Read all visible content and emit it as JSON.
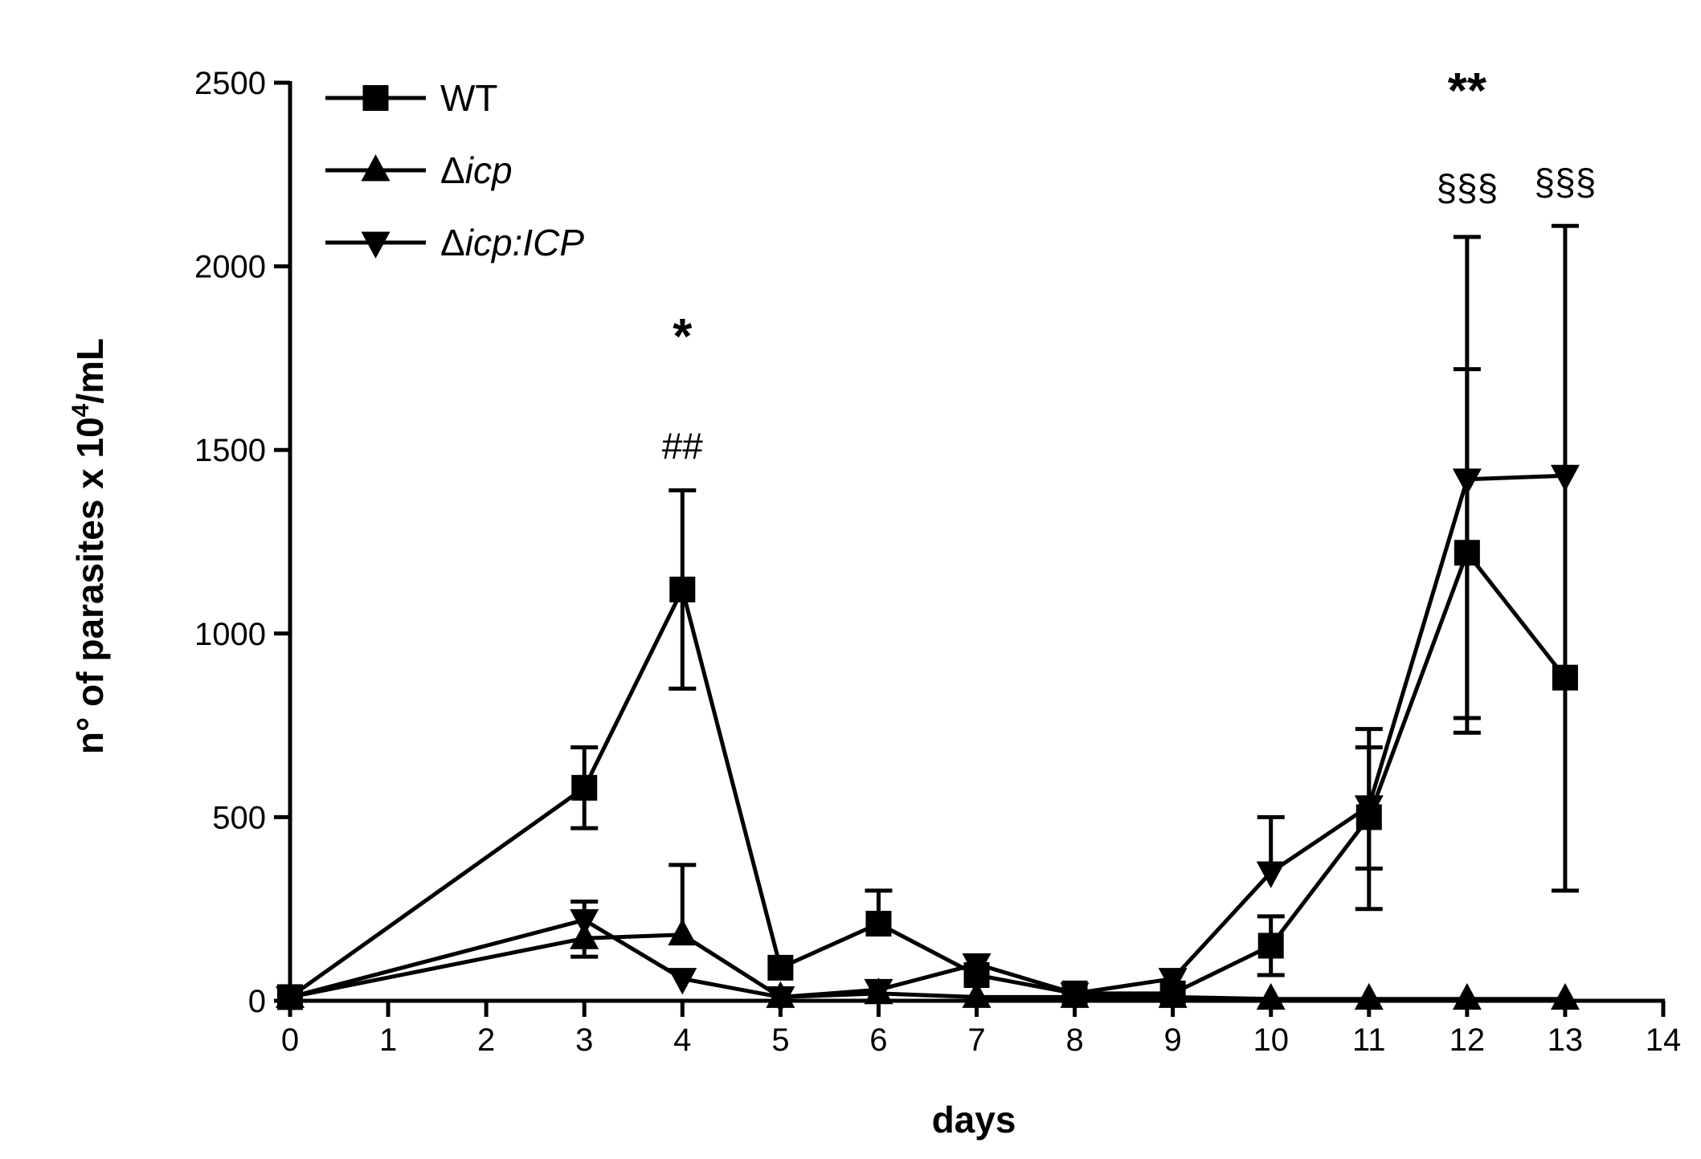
{
  "chart_data": {
    "type": "line",
    "title": "",
    "xlabel": "days",
    "ylabel_main": "n° of parasites x 10",
    "ylabel_sup": "4",
    "ylabel_tail": "/mL",
    "xlim": [
      0,
      14
    ],
    "ylim": [
      0,
      2500
    ],
    "x_ticks": [
      0,
      1,
      2,
      3,
      4,
      5,
      6,
      7,
      8,
      9,
      10,
      11,
      12,
      13,
      14
    ],
    "x_tick_labels": [
      "0",
      "1",
      "2",
      "3",
      "4",
      "5",
      "6",
      "7",
      "8",
      "9",
      "10",
      "11",
      "12",
      "13",
      "14"
    ],
    "y_ticks": [
      0,
      500,
      1000,
      1500,
      2000,
      2500
    ],
    "y_tick_labels": [
      "0",
      "500",
      "1000",
      "1500",
      "2000",
      "2500"
    ],
    "legend_position": "top-left",
    "grid": false,
    "series": [
      {
        "name": "WT",
        "name_prefix": "",
        "name_italic": "WT",
        "italic": false,
        "marker": "square",
        "x": [
          0,
          3,
          4,
          5,
          6,
          7,
          8,
          9,
          10,
          11,
          12,
          13
        ],
        "values": [
          10,
          580,
          1120,
          90,
          210,
          70,
          20,
          20,
          150,
          500,
          1220,
          880
        ],
        "err_upper": [
          0,
          690,
          1390,
          0,
          300,
          0,
          0,
          0,
          230,
          690,
          1720,
          0
        ],
        "err_lower": [
          0,
          470,
          850,
          0,
          0,
          0,
          0,
          0,
          70,
          250,
          730,
          0
        ]
      },
      {
        "name": "Δicp",
        "name_prefix": "Δ",
        "name_italic": "icp",
        "italic": true,
        "marker": "triangle-up",
        "x": [
          0,
          3,
          4,
          5,
          6,
          7,
          8,
          9,
          10,
          11,
          12,
          13
        ],
        "values": [
          10,
          170,
          180,
          10,
          20,
          10,
          10,
          10,
          5,
          5,
          5,
          5
        ],
        "err_upper": [
          0,
          0,
          370,
          0,
          0,
          0,
          0,
          0,
          0,
          0,
          0,
          0
        ],
        "err_lower": [
          0,
          120,
          0,
          0,
          0,
          0,
          0,
          0,
          0,
          0,
          0,
          0
        ]
      },
      {
        "name": "Δicp:ICP",
        "name_prefix": "Δ",
        "name_italic": "icp:ICP",
        "italic": true,
        "marker": "triangle-down",
        "x": [
          0,
          3,
          4,
          5,
          6,
          7,
          8,
          9,
          10,
          11,
          12,
          13
        ],
        "values": [
          10,
          220,
          60,
          10,
          30,
          100,
          20,
          60,
          350,
          530,
          1420,
          1430
        ],
        "err_upper": [
          0,
          270,
          0,
          0,
          0,
          0,
          0,
          0,
          500,
          740,
          2080,
          2110
        ],
        "err_lower": [
          0,
          0,
          0,
          0,
          0,
          0,
          0,
          0,
          0,
          360,
          770,
          300
        ]
      }
    ],
    "annotations": [
      {
        "text": "*",
        "x": 4,
        "y": 1810,
        "size": "large"
      },
      {
        "text": "##",
        "x": 4,
        "y": 1510,
        "size": "medium"
      },
      {
        "text": "**",
        "x": 12,
        "y": 2480,
        "size": "large"
      },
      {
        "text": "§§§",
        "x": 12,
        "y": 2215,
        "size": "medium"
      },
      {
        "text": "§§§",
        "x": 13,
        "y": 2230,
        "size": "medium"
      }
    ]
  }
}
